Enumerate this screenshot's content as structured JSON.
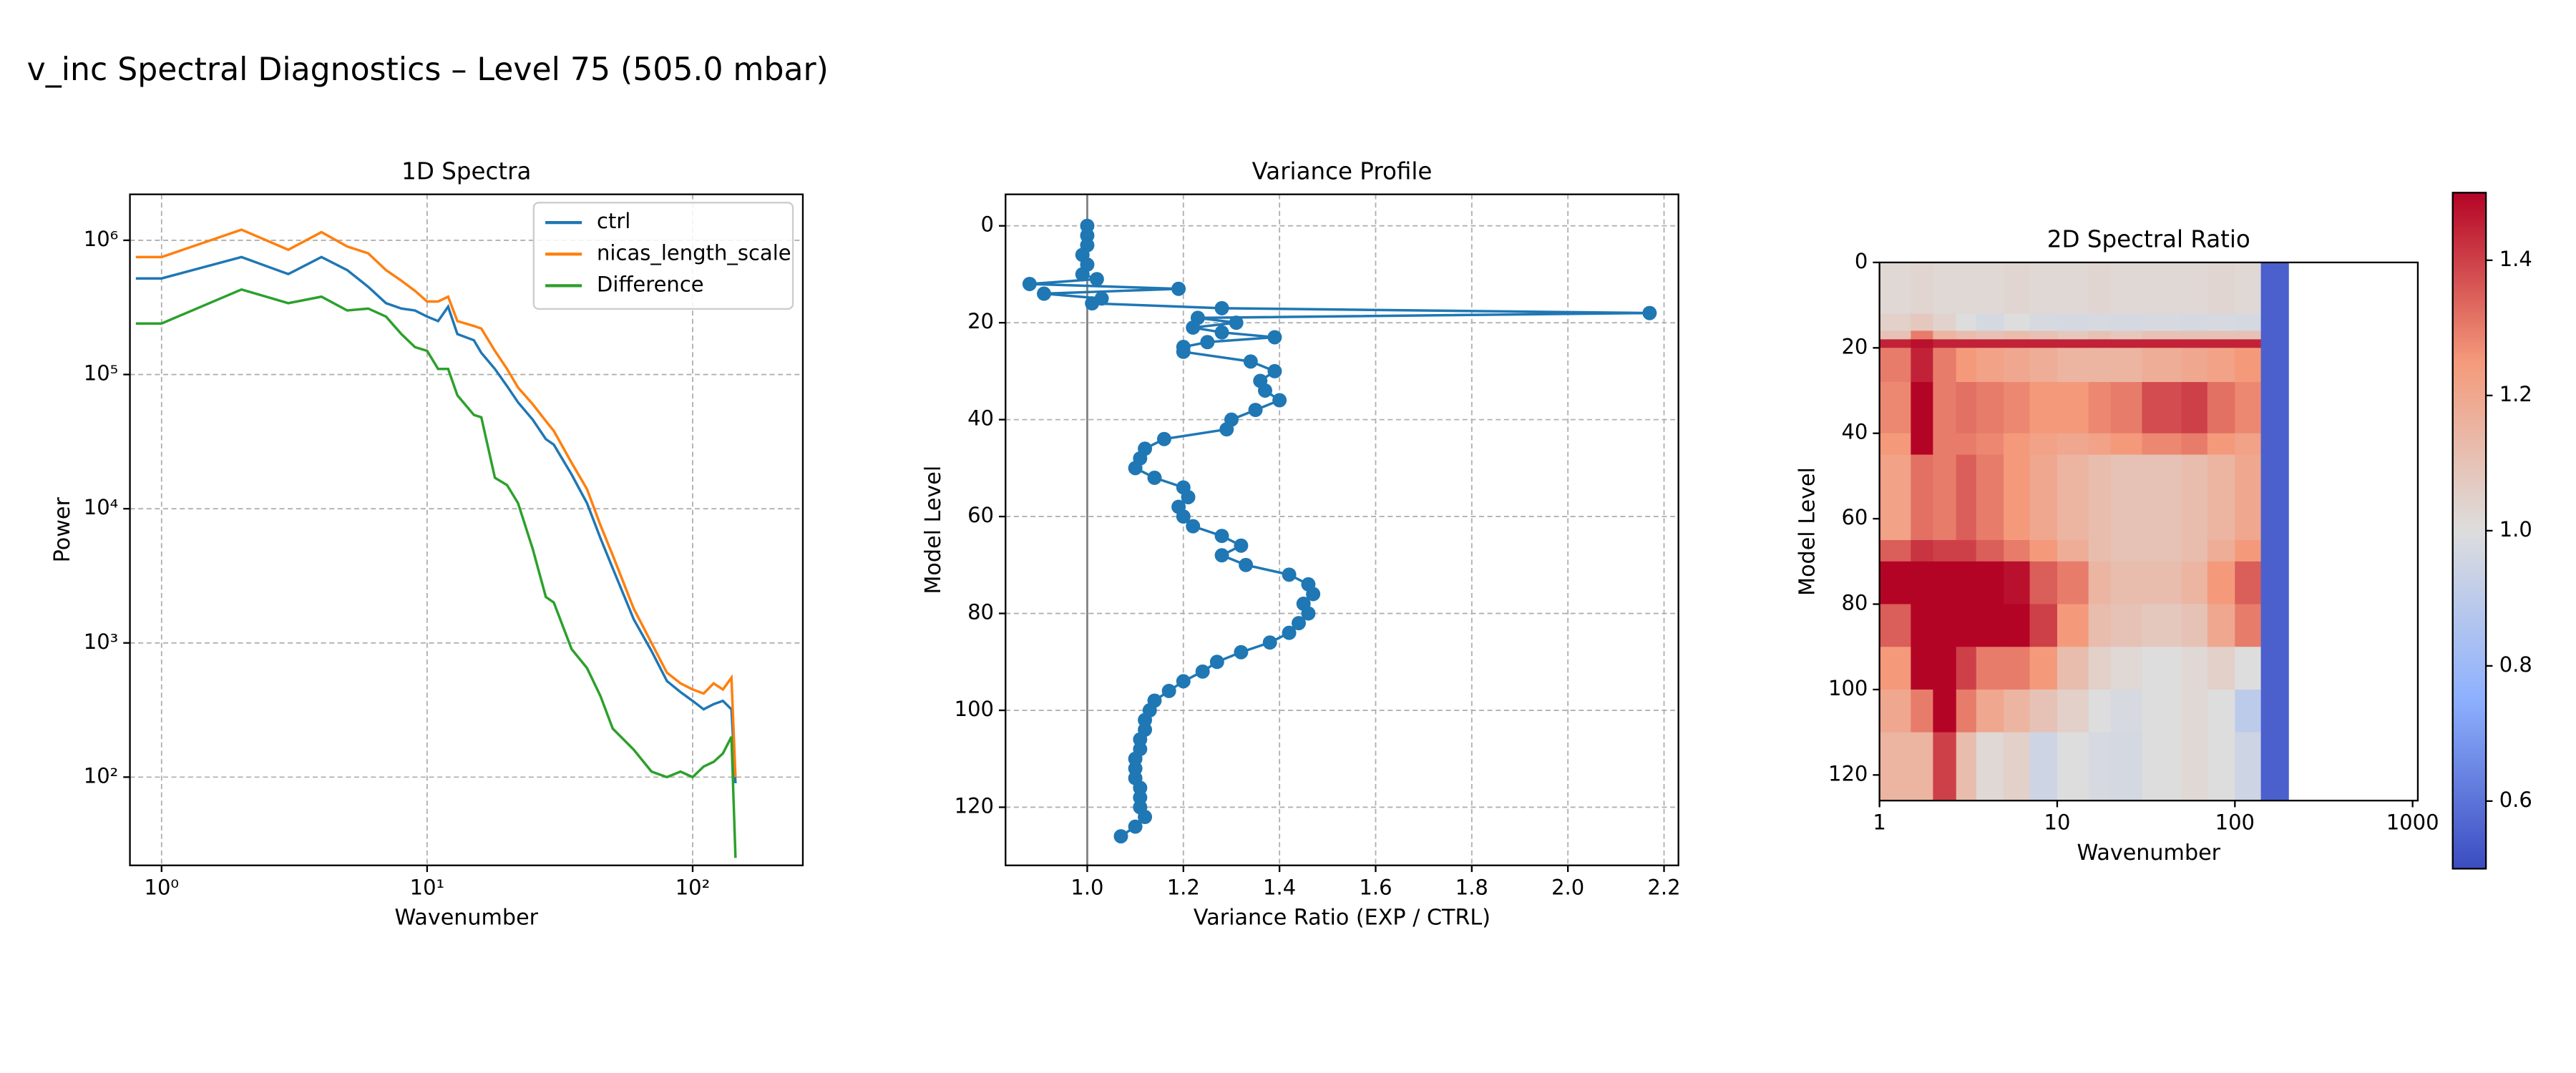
{
  "title": "v_inc Spectral Diagnostics – Level 75 (505.0 mbar)",
  "chart_data": [
    {
      "type": "line",
      "title": "1D Spectra",
      "xlabel": "Wavenumber",
      "ylabel": "Power",
      "xscale": "log",
      "yscale": "log",
      "grid": true,
      "legend": "upper right",
      "xlim": [
        0.76,
        260
      ],
      "ylim": [
        22,
        2200000
      ],
      "xticks": [
        {
          "value": 1,
          "label": "10⁰"
        },
        {
          "value": 10,
          "label": "10¹"
        },
        {
          "value": 100,
          "label": "10²"
        }
      ],
      "yticks": [
        {
          "value": 100,
          "label": "10²"
        },
        {
          "value": 1000,
          "label": "10³"
        },
        {
          "value": 10000,
          "label": "10⁴"
        },
        {
          "value": 100000,
          "label": "10⁵"
        },
        {
          "value": 1000000,
          "label": "10⁶"
        }
      ],
      "x": [
        0.8,
        1,
        2,
        3,
        4,
        5,
        6,
        7,
        8,
        9,
        10,
        11,
        12,
        13,
        15,
        16,
        18,
        20,
        22,
        25,
        28,
        30,
        35,
        40,
        45,
        50,
        60,
        70,
        80,
        90,
        100,
        110,
        120,
        130,
        140,
        145
      ],
      "series": [
        {
          "name": "ctrl",
          "color": "#1f77b4",
          "values": [
            520000,
            520000,
            750000,
            560000,
            750000,
            600000,
            450000,
            340000,
            310000,
            300000,
            270000,
            250000,
            320000,
            200000,
            180000,
            145000,
            110000,
            82000,
            62000,
            46000,
            33000,
            30000,
            18000,
            11000,
            6000,
            3600,
            1500,
            870,
            520,
            430,
            370,
            320,
            350,
            370,
            320,
            90
          ]
        },
        {
          "name": "nicas_length_scale",
          "color": "#ff7f0e",
          "values": [
            750000,
            750000,
            1200000,
            850000,
            1150000,
            900000,
            800000,
            600000,
            500000,
            420000,
            350000,
            350000,
            380000,
            250000,
            230000,
            220000,
            150000,
            110000,
            80000,
            60000,
            45000,
            38000,
            22000,
            14000,
            7500,
            4500,
            1800,
            1000,
            600,
            500,
            450,
            420,
            500,
            450,
            550,
            100
          ]
        },
        {
          "name": "Difference",
          "color": "#2ca02c",
          "values": [
            240000,
            240000,
            430000,
            340000,
            380000,
            300000,
            310000,
            270000,
            200000,
            160000,
            150000,
            110000,
            110000,
            70000,
            50000,
            48000,
            17000,
            15000,
            11000,
            5000,
            2200,
            2000,
            900,
            650,
            400,
            230,
            160,
            110,
            100,
            110,
            100,
            120,
            130,
            150,
            200,
            25
          ]
        }
      ]
    },
    {
      "type": "profile",
      "title": "Variance Profile",
      "xlabel": "Variance Ratio (EXP / CTRL)",
      "ylabel": "Model Level",
      "grid": true,
      "color": "#1f77b4",
      "xline": 1.0,
      "xlim": [
        0.83,
        2.23
      ],
      "ylim": [
        132,
        -6.5
      ],
      "xticks": [
        {
          "value": 1.0,
          "label": "1.0"
        },
        1.2,
        1.4,
        1.6,
        1.8,
        {
          "value": 2.0,
          "label": "2.0"
        },
        2.2
      ],
      "yticks": [
        0,
        20,
        40,
        60,
        80,
        100,
        120
      ],
      "levels": [
        0,
        2,
        4,
        6,
        8,
        10,
        11,
        12,
        13,
        14,
        15,
        16,
        17,
        18,
        19,
        20,
        21,
        22,
        23,
        24,
        25,
        26,
        28,
        30,
        32,
        34,
        36,
        38,
        40,
        42,
        44,
        46,
        48,
        50,
        52,
        54,
        56,
        58,
        60,
        62,
        64,
        66,
        68,
        70,
        72,
        74,
        76,
        78,
        80,
        82,
        84,
        86,
        88,
        90,
        92,
        94,
        96,
        98,
        100,
        102,
        104,
        106,
        108,
        110,
        112,
        114,
        116,
        118,
        120,
        122,
        124,
        126
      ],
      "values": [
        1.0,
        1.0,
        1.0,
        0.99,
        1.0,
        0.99,
        1.02,
        0.88,
        1.19,
        0.91,
        1.03,
        1.01,
        1.28,
        2.17,
        1.23,
        1.31,
        1.22,
        1.28,
        1.39,
        1.25,
        1.2,
        1.2,
        1.34,
        1.39,
        1.36,
        1.37,
        1.4,
        1.35,
        1.3,
        1.29,
        1.16,
        1.12,
        1.11,
        1.1,
        1.14,
        1.2,
        1.21,
        1.19,
        1.2,
        1.22,
        1.28,
        1.32,
        1.28,
        1.33,
        1.42,
        1.46,
        1.47,
        1.45,
        1.46,
        1.44,
        1.42,
        1.38,
        1.32,
        1.27,
        1.24,
        1.2,
        1.17,
        1.14,
        1.13,
        1.12,
        1.12,
        1.11,
        1.11,
        1.1,
        1.1,
        1.1,
        1.11,
        1.11,
        1.11,
        1.12,
        1.1,
        1.07
      ]
    },
    {
      "type": "heatmap",
      "title": "2D Spectral Ratio",
      "xlabel": "Wavenumber",
      "ylabel": "Model Level",
      "xscale": "log",
      "colormap": "coolwarm",
      "clim": [
        0.5,
        1.5
      ],
      "xlim": [
        1,
        1070
      ],
      "ylim": [
        126,
        0
      ],
      "xticks": [
        1,
        10,
        100,
        1000
      ],
      "yticks": [
        0,
        20,
        40,
        60,
        80,
        100,
        120
      ],
      "cticks": [
        0.6,
        0.8,
        {
          "value": 1.0,
          "label": "1.0"
        },
        1.2,
        1.4
      ],
      "x_edges": [
        1,
        1.5,
        2,
        2.7,
        3.5,
        5,
        7,
        10,
        15,
        20,
        30,
        50,
        70,
        100,
        140,
        200
      ],
      "y_edges": [
        0,
        12,
        16,
        18,
        20,
        28,
        40,
        45,
        65,
        70,
        80,
        90,
        100,
        110,
        126
      ],
      "values": [
        [
          1.02,
          1.03,
          1.02,
          1.02,
          1.02,
          1.03,
          1.02,
          1.02,
          1.03,
          1.02,
          1.02,
          1.02,
          1.03,
          1.02,
          0.55
        ],
        [
          1.05,
          1.08,
          1.04,
          1.0,
          0.97,
          1.0,
          0.98,
          0.97,
          0.98,
          0.97,
          0.98,
          0.97,
          0.98,
          0.97,
          0.55
        ],
        [
          1.1,
          1.3,
          1.15,
          1.12,
          1.1,
          1.12,
          1.1,
          1.08,
          1.1,
          1.08,
          1.1,
          1.1,
          1.1,
          1.1,
          0.55
        ],
        [
          1.45,
          1.48,
          1.45,
          1.45,
          1.45,
          1.45,
          1.45,
          1.45,
          1.45,
          1.45,
          1.45,
          1.45,
          1.45,
          1.45,
          0.55
        ],
        [
          1.3,
          1.45,
          1.3,
          1.25,
          1.22,
          1.2,
          1.18,
          1.15,
          1.15,
          1.15,
          1.18,
          1.2,
          1.22,
          1.25,
          0.55
        ],
        [
          1.28,
          1.5,
          1.3,
          1.32,
          1.3,
          1.28,
          1.25,
          1.25,
          1.28,
          1.3,
          1.38,
          1.4,
          1.32,
          1.28,
          0.55
        ],
        [
          1.25,
          1.5,
          1.3,
          1.3,
          1.28,
          1.25,
          1.22,
          1.2,
          1.22,
          1.25,
          1.28,
          1.3,
          1.25,
          1.22,
          0.55
        ],
        [
          1.22,
          1.32,
          1.3,
          1.35,
          1.3,
          1.25,
          1.2,
          1.15,
          1.12,
          1.1,
          1.1,
          1.12,
          1.15,
          1.2,
          0.55
        ],
        [
          1.35,
          1.42,
          1.4,
          1.4,
          1.35,
          1.3,
          1.25,
          1.18,
          1.12,
          1.1,
          1.1,
          1.12,
          1.18,
          1.25,
          0.55
        ],
        [
          1.5,
          1.5,
          1.5,
          1.5,
          1.5,
          1.48,
          1.35,
          1.3,
          1.15,
          1.12,
          1.12,
          1.15,
          1.25,
          1.35,
          0.55
        ],
        [
          1.35,
          1.5,
          1.5,
          1.5,
          1.5,
          1.5,
          1.4,
          1.25,
          1.12,
          1.1,
          1.08,
          1.1,
          1.2,
          1.3,
          0.55
        ],
        [
          1.25,
          1.5,
          1.5,
          1.4,
          1.3,
          1.3,
          1.25,
          1.12,
          1.05,
          1.02,
          1.0,
          1.02,
          1.05,
          1.0,
          0.55
        ],
        [
          1.2,
          1.3,
          1.5,
          1.3,
          1.2,
          1.15,
          1.1,
          1.05,
          1.0,
          0.98,
          1.0,
          1.02,
          1.0,
          0.9,
          0.55
        ],
        [
          1.15,
          1.15,
          1.4,
          1.12,
          1.02,
          1.05,
          0.95,
          1.0,
          0.98,
          0.97,
          1.0,
          1.02,
          1.0,
          0.95,
          0.55
        ]
      ]
    }
  ]
}
